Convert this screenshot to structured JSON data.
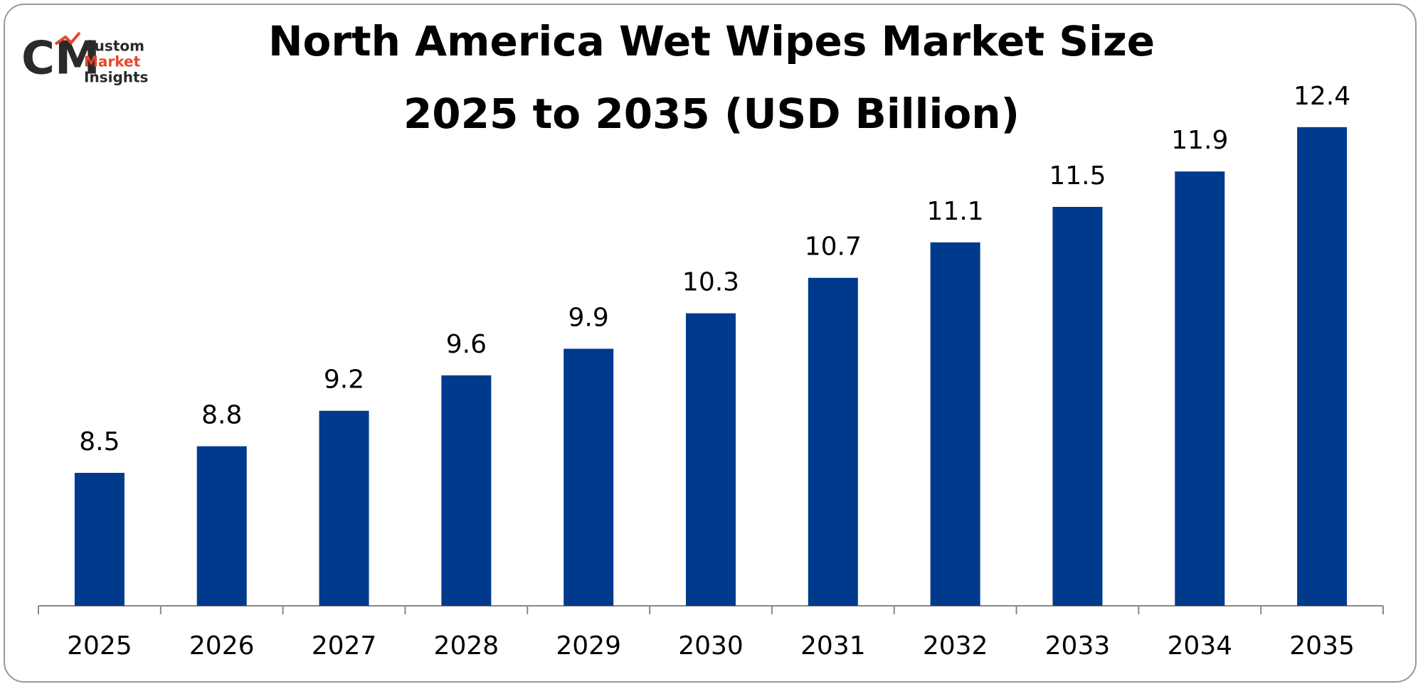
{
  "logo": {
    "lines": [
      "Custom",
      "Market",
      "Insights"
    ]
  },
  "chart_data": {
    "type": "bar",
    "title": [
      "North America Wet Wipes Market Size",
      "2025 to 2035 (USD Billion)"
    ],
    "categories": [
      "2025",
      "2026",
      "2027",
      "2028",
      "2029",
      "2030",
      "2031",
      "2032",
      "2033",
      "2034",
      "2035"
    ],
    "values": [
      8.5,
      8.8,
      9.2,
      9.6,
      9.9,
      10.3,
      10.7,
      11.1,
      11.5,
      11.9,
      12.4
    ],
    "color": "#003a8c",
    "ylim": [
      7,
      13
    ]
  }
}
